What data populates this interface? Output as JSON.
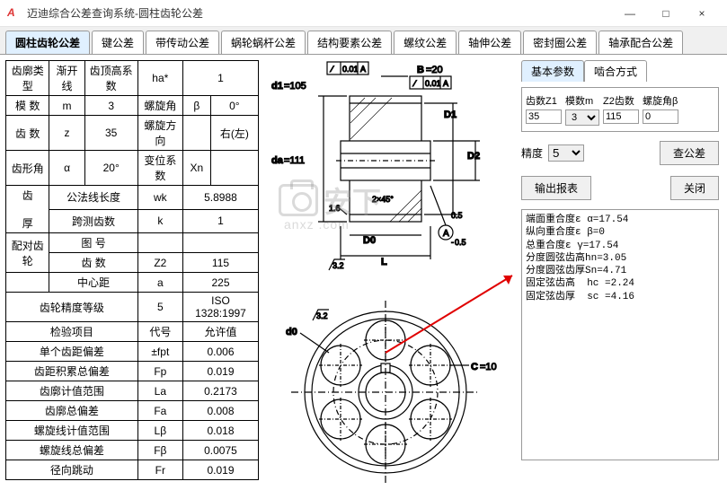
{
  "window": {
    "title": "迈迪综合公差查询系统-圆柱齿轮公差",
    "min": "—",
    "max": "□",
    "close": "×"
  },
  "tabs": [
    "圆柱齿轮公差",
    "键公差",
    "带传动公差",
    "蜗轮蜗杆公差",
    "结构要素公差",
    "螺纹公差",
    "轴伸公差",
    "密封圈公差",
    "轴承配合公差"
  ],
  "active_tab": 0,
  "param_rows": [
    [
      "齿廓类型",
      "渐开线",
      "齿顶高系数",
      "ha*",
      "1"
    ],
    [
      "模 数",
      "m",
      "3",
      "螺旋角",
      "β",
      "0°"
    ],
    [
      "齿 数",
      "z",
      "35",
      "螺旋方向",
      "",
      "右(左)"
    ],
    [
      "齿形角",
      "α",
      "20°",
      "变位系数",
      "Xn",
      ""
    ]
  ],
  "param_rows2": [
    [
      "齿",
      "公法线长度",
      "wk",
      "5.8988"
    ],
    [
      "厚",
      "跨测齿数",
      "k",
      "1"
    ]
  ],
  "pair_rows": [
    [
      "配对齿轮",
      "图 号",
      "",
      ""
    ],
    [
      "",
      "齿 数",
      "Z2",
      "115"
    ],
    [
      "",
      "中心距",
      "a",
      "225"
    ],
    [
      "齿轮精度等级",
      "",
      "5",
      "ISO 1328:1997"
    ]
  ],
  "check_header": [
    "检验项目",
    "代号",
    "允许值"
  ],
  "check_rows": [
    [
      "单个齿距偏差",
      "±fpt",
      "0.006"
    ],
    [
      "齿距积累总偏差",
      "Fp",
      "0.019"
    ],
    [
      "齿廓计值范围",
      "La",
      "0.2173"
    ],
    [
      "齿廓总偏差",
      "Fa",
      "0.008"
    ],
    [
      "螺旋线计值范围",
      "Lβ",
      "0.018"
    ],
    [
      "螺旋线总偏差",
      "Fβ",
      "0.0075"
    ],
    [
      "径向跳动",
      "Fr",
      "0.019"
    ]
  ],
  "right": {
    "subtabs": [
      "基本参数",
      "啮合方式"
    ],
    "active_subtab": 0,
    "inputs": [
      {
        "label": "齿数Z1",
        "value": "35"
      },
      {
        "label": "模数m",
        "value": "3",
        "type": "select"
      },
      {
        "label": "Z2齿数",
        "value": "115"
      },
      {
        "label": "螺旋角β",
        "value": "0"
      }
    ],
    "precision_label": "精度",
    "precision_value": "5",
    "btn_query": "查公差",
    "btn_report": "输出报表",
    "btn_close": "关闭",
    "output": "端面重合度ε α=17.54\n纵向重合度ε β=0\n总重合度ε γ=17.54\n分度圆弦齿高hn=3.05\n分度圆弦齿厚Sn=4.71\n固定弦齿高  hc =2.24\n固定弦齿厚  sc =4.16"
  },
  "diagram": {
    "labels": {
      "tol1": "0.01",
      "tol2": "0.01",
      "A": "A",
      "B": "B",
      "B_val": "=20",
      "d1": "d1",
      "d1_val": "=105",
      "D1": "D1",
      "da": "da",
      "da_val": "=111",
      "D2": "D2",
      "D0": "D0",
      "L": "L",
      "ang": "1.6",
      "cham": "2×45°",
      "a3": "3.2",
      "a32": "3.2",
      "d0": "d0",
      "C": "C",
      "C_val": "=10",
      "p05": "0.5",
      "n05": "0.5",
      "Acirc": "A"
    },
    "colors": {
      "black": "#000",
      "blue": "#0050ff",
      "red": "#e00000",
      "gray": "#888"
    }
  },
  "watermark": "安下",
  "watermark2": "anxz .com"
}
